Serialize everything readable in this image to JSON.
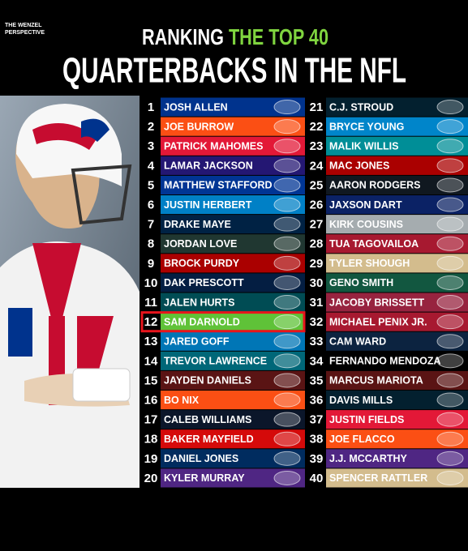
{
  "header": {
    "brand": [
      "THE WENZEL",
      "PERSPECTIVE"
    ],
    "title_line1": [
      "RANKING",
      "THE TOP 40"
    ],
    "title_line2": "QUARTERBACKS IN THE NFL"
  },
  "rankings": [
    {
      "rank": 1,
      "name": "JOSH ALLEN",
      "color": "#00338d"
    },
    {
      "rank": 2,
      "name": "JOE BURROW",
      "color": "#fb4f14"
    },
    {
      "rank": 3,
      "name": "PATRICK MAHOMES",
      "color": "#e31837"
    },
    {
      "rank": 4,
      "name": "LAMAR JACKSON",
      "color": "#241773"
    },
    {
      "rank": 5,
      "name": "MATTHEW STAFFORD",
      "color": "#003594"
    },
    {
      "rank": 6,
      "name": "JUSTIN HERBERT",
      "color": "#0080c6"
    },
    {
      "rank": 7,
      "name": "DRAKE MAYE",
      "color": "#002244"
    },
    {
      "rank": 8,
      "name": "JORDAN LOVE",
      "color": "#203731"
    },
    {
      "rank": 9,
      "name": "BROCK PURDY",
      "color": "#aa0000"
    },
    {
      "rank": 10,
      "name": "DAK PRESCOTT",
      "color": "#041e42"
    },
    {
      "rank": 11,
      "name": "JALEN HURTS",
      "color": "#004c54"
    },
    {
      "rank": 12,
      "name": "SAM DARNOLD",
      "color": "#5fc238"
    },
    {
      "rank": 13,
      "name": "JARED GOFF",
      "color": "#0076b6"
    },
    {
      "rank": 14,
      "name": "TREVOR LAWRENCE",
      "color": "#006778"
    },
    {
      "rank": 15,
      "name": "JAYDEN DANIELS",
      "color": "#5a1414"
    },
    {
      "rank": 16,
      "name": "BO NIX",
      "color": "#fb4f14"
    },
    {
      "rank": 17,
      "name": "CALEB WILLIAMS",
      "color": "#0b162a"
    },
    {
      "rank": 18,
      "name": "BAKER MAYFIELD",
      "color": "#d50a0a"
    },
    {
      "rank": 19,
      "name": "DANIEL JONES",
      "color": "#002c5f"
    },
    {
      "rank": 20,
      "name": "KYLER MURRAY",
      "color": "#4f2683"
    },
    {
      "rank": 21,
      "name": "C.J. STROUD",
      "color": "#03202f"
    },
    {
      "rank": 22,
      "name": "BRYCE YOUNG",
      "color": "#0085ca"
    },
    {
      "rank": 23,
      "name": "MALIK WILLIS",
      "color": "#008e97"
    },
    {
      "rank": 24,
      "name": "MAC JONES",
      "color": "#aa0000"
    },
    {
      "rank": 25,
      "name": "AARON RODGERS",
      "color": "#101820"
    },
    {
      "rank": 26,
      "name": "JAXSON DART",
      "color": "#0b2265"
    },
    {
      "rank": 27,
      "name": "KIRK COUSINS",
      "color": "#a5acaf"
    },
    {
      "rank": 28,
      "name": "TUA TAGOVAILOA",
      "color": "#a71930"
    },
    {
      "rank": 29,
      "name": "TYLER SHOUGH",
      "color": "#d3bc8d"
    },
    {
      "rank": 30,
      "name": "GENO SMITH",
      "color": "#125740"
    },
    {
      "rank": 31,
      "name": "JACOBY BRISSETT",
      "color": "#97233f"
    },
    {
      "rank": 32,
      "name": "MICHAEL PENIX JR.",
      "color": "#a71930"
    },
    {
      "rank": 33,
      "name": "CAM WARD",
      "color": "#0c2340"
    },
    {
      "rank": 34,
      "name": "FERNANDO MENDOZA",
      "color": "#000000"
    },
    {
      "rank": 35,
      "name": "MARCUS MARIOTA",
      "color": "#5a1414"
    },
    {
      "rank": 36,
      "name": "DAVIS MILLS",
      "color": "#03202f"
    },
    {
      "rank": 37,
      "name": "JUSTIN FIELDS",
      "color": "#e31837"
    },
    {
      "rank": 38,
      "name": "JOE FLACCO",
      "color": "#fb4f14"
    },
    {
      "rank": 39,
      "name": "J.J. MCCARTHY",
      "color": "#4f2683"
    },
    {
      "rank": 40,
      "name": "SPENCER RATTLER",
      "color": "#d3bc8d"
    }
  ]
}
